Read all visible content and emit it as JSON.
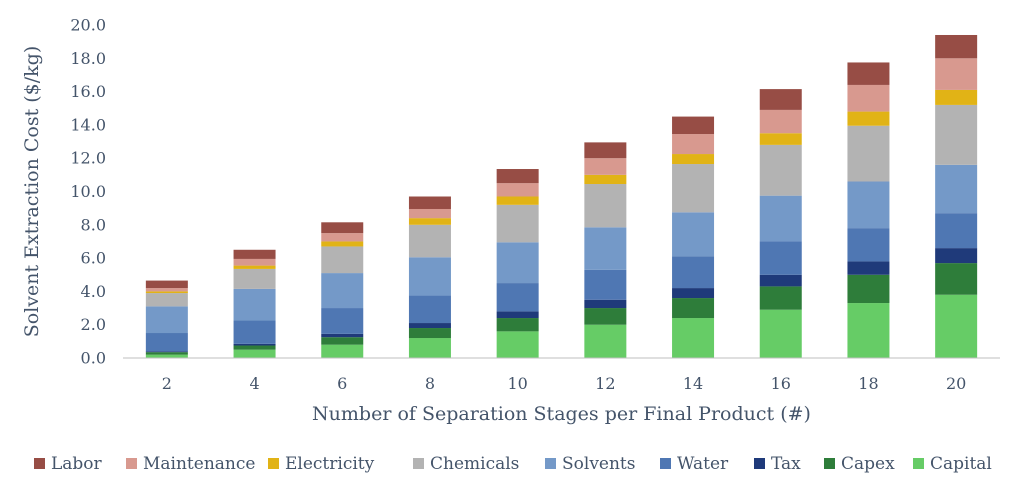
{
  "chart_data": {
    "type": "bar",
    "stacked": true,
    "xlabel": "Number of Separation Stages per Final Product (#)",
    "ylabel": "Solvent Extraction Cost ($/kg)",
    "ylim": [
      0,
      20
    ],
    "yticks": [
      "0.0",
      "2.0",
      "4.0",
      "6.0",
      "8.0",
      "10.0",
      "12.0",
      "14.0",
      "16.0",
      "18.0",
      "20.0"
    ],
    "ytick_values": [
      0,
      2,
      4,
      6,
      8,
      10,
      12,
      14,
      16,
      18,
      20
    ],
    "categories": [
      "2",
      "4",
      "6",
      "8",
      "10",
      "12",
      "14",
      "16",
      "18",
      "20"
    ],
    "grid": false,
    "legend_position": "bottom",
    "series": [
      {
        "name": "Capital",
        "color": "#66cc66",
        "values": [
          0.2,
          0.5,
          0.8,
          1.2,
          1.6,
          2.0,
          2.4,
          2.9,
          3.3,
          3.8
        ]
      },
      {
        "name": "Capex",
        "color": "#2e7d3a",
        "values": [
          0.15,
          0.25,
          0.45,
          0.6,
          0.8,
          1.0,
          1.2,
          1.4,
          1.7,
          1.9
        ]
      },
      {
        "name": "Tax",
        "color": "#1f3a7a",
        "values": [
          0.05,
          0.1,
          0.2,
          0.3,
          0.4,
          0.5,
          0.6,
          0.7,
          0.8,
          0.9
        ]
      },
      {
        "name": "Water",
        "color": "#4f77b3",
        "values": [
          1.1,
          1.4,
          1.55,
          1.65,
          1.7,
          1.8,
          1.9,
          2.0,
          2.0,
          2.1
        ]
      },
      {
        "name": "Solvents",
        "color": "#7499c8",
        "values": [
          1.6,
          1.9,
          2.1,
          2.3,
          2.45,
          2.55,
          2.65,
          2.75,
          2.8,
          2.9
        ]
      },
      {
        "name": "Chemicals",
        "color": "#b3b3b3",
        "values": [
          0.8,
          1.2,
          1.6,
          1.95,
          2.25,
          2.6,
          2.9,
          3.05,
          3.35,
          3.6
        ]
      },
      {
        "name": "Electricity",
        "color": "#e1b316",
        "values": [
          0.1,
          0.2,
          0.3,
          0.4,
          0.5,
          0.55,
          0.6,
          0.7,
          0.85,
          0.9
        ]
      },
      {
        "name": "Maintenance",
        "color": "#d8998f",
        "values": [
          0.2,
          0.4,
          0.5,
          0.55,
          0.8,
          1.0,
          1.2,
          1.4,
          1.6,
          1.9
        ]
      },
      {
        "name": "Labor",
        "color": "#974d45",
        "values": [
          0.45,
          0.55,
          0.65,
          0.75,
          0.85,
          0.95,
          1.05,
          1.25,
          1.35,
          1.4
        ]
      }
    ],
    "legend_order": [
      "Labor",
      "Maintenance",
      "Electricity",
      "Chemicals",
      "Solvents",
      "Water",
      "Tax",
      "Capex",
      "Capital"
    ]
  }
}
